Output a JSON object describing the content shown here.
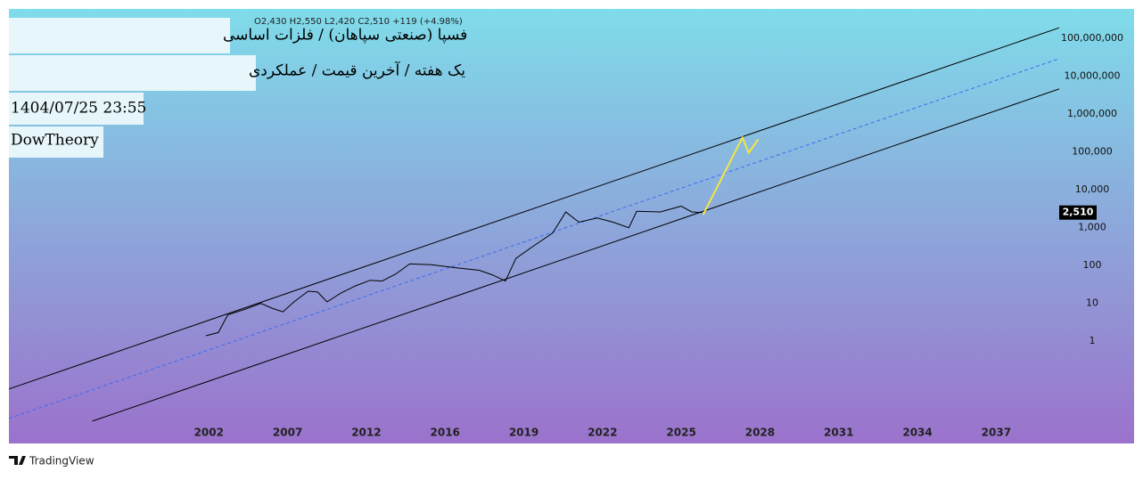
{
  "chart_data": {
    "type": "line",
    "legend_text": "O2,430  H2,550  L2,420  C2,510  +119 (+4.98%)",
    "title": "فسپا (صنعتی سپاهان) / فلزات اساسی",
    "subtitle": "یک هفته / آخرین قیمت / عملکردی",
    "date": "1404/07/25 23:55",
    "author": "DowTheory",
    "brand": "TradingView",
    "log_scale": true,
    "xlim": [
      1989.3,
      2039.4
    ],
    "xticks": [
      2002,
      2007,
      2012,
      2016,
      2019,
      2022,
      2025,
      2028,
      2031,
      2034,
      2037
    ],
    "ylim": [
      0.002,
      600000000
    ],
    "yticks": [
      1,
      10,
      100,
      {
        "value": 1000,
        "label": "1,000"
      },
      {
        "value": 10000,
        "label": "10,000"
      },
      {
        "value": 100000,
        "label": "100,000"
      },
      {
        "value": 1000000,
        "label": "1,000,000"
      },
      {
        "value": 10000000,
        "label": "10,000,000"
      },
      {
        "value": 100000000,
        "label": "100,000,000"
      }
    ],
    "last_price": {
      "value": 2510,
      "label": "2,510"
    },
    "series": [
      {
        "color": "#000000",
        "x": [
          2001.8,
          2002.6,
          2003.2,
          2004.3,
          2005.3,
          2006.0,
          2006.7,
          2007.4,
          2008.3,
          2008.9,
          2009.5,
          2010.4,
          2011.3,
          2012.2,
          2012.8,
          2013.5,
          2014.2,
          2015.3,
          2016.4,
          2017.3,
          2017.8,
          2018.3,
          2018.7,
          2019.4,
          2020.1,
          2020.6,
          2021.1,
          2021.8,
          2022.4,
          2023.0,
          2023.3,
          2024.2,
          2025.0,
          2025.4,
          2025.8
        ],
        "values": [
          1.4,
          1.7,
          5,
          7,
          10,
          7.5,
          6,
          11,
          21,
          20,
          11,
          19,
          29,
          41,
          39,
          60,
          110,
          105,
          88,
          75,
          57,
          39,
          155,
          340,
          720,
          2600,
          1400,
          1800,
          1400,
          1000,
          2700,
          2600,
          3700,
          2600,
          2510
        ]
      },
      {
        "color": "#f5e642",
        "x": [
          2025.83,
          2027.33,
          2027.57,
          2027.93
        ],
        "values": [
          2200,
          240000,
          95000,
          215000
        ]
      }
    ],
    "channel": [
      {
        "color": "#000000",
        "dashed": false,
        "x": [
          1989.3,
          2039.4
        ],
        "values": [
          0.055,
          190000000
        ]
      },
      {
        "color": "#3b6cf0",
        "dashed": true,
        "x": [
          1989.3,
          2039.4
        ],
        "values": [
          0.0092,
          29000000
        ]
      },
      {
        "color": "#000000",
        "dashed": false,
        "x": [
          1994.6,
          2039.4
        ],
        "values": [
          0.0078,
          4600000
        ]
      }
    ]
  }
}
